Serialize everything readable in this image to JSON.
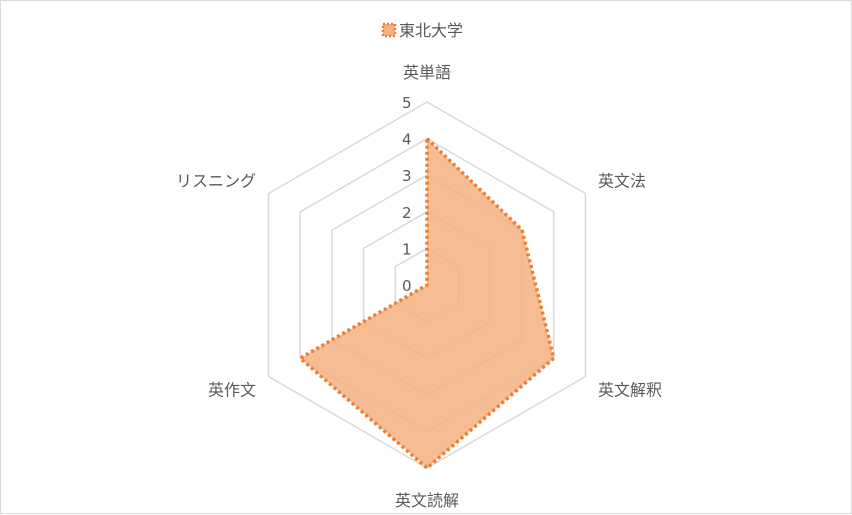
{
  "chart_data": {
    "type": "radar",
    "axes": [
      "英単語",
      "英文法",
      "英文解釈",
      "英文読解",
      "英作文",
      "リスニング"
    ],
    "series": [
      {
        "name": "東北大学",
        "values": [
          4,
          3,
          4,
          5,
          4,
          0
        ]
      }
    ],
    "rlim": [
      0,
      5
    ],
    "ticks": [
      "0",
      "1",
      "2",
      "3",
      "4",
      "5"
    ],
    "legend_position": "top",
    "grid": true,
    "colors": {
      "fill": "#f4b183",
      "line": "#ed7d31",
      "grid": "#d9d9d9"
    }
  }
}
